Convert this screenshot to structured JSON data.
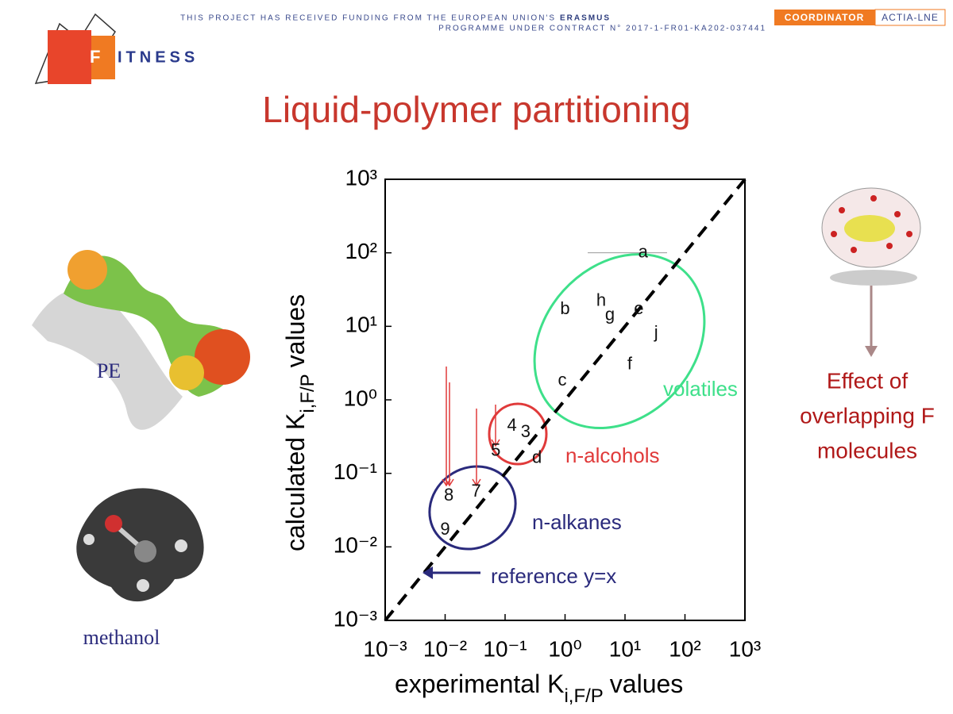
{
  "header": {
    "funding": {
      "line1": "THIS PROJECT HAS RECEIVED FUNDING FROM THE EUROPEAN UNION'S",
      "bold": "ERASMUS",
      "line2": "PROGRAMME UNDER CONTRACT N° 2017-1-FR01-KA202-037441"
    },
    "coordinator": "COORDINATOR",
    "partner": "ACTIA-LNE",
    "logo": {
      "letter": "F",
      "rest": "ITNESS"
    }
  },
  "slide_title": "Liquid-polymer partitioning",
  "left_labels": {
    "polymer": "PE",
    "molecule": "methanol"
  },
  "right_label": [
    "Effect of",
    "overlapping F",
    "molecules"
  ],
  "chart_data": {
    "type": "scatter",
    "xscale": "log",
    "yscale": "log",
    "x_label": {
      "main": "experimental K",
      "sub": "i,F/P",
      "tail": "values"
    },
    "y_label": {
      "main": "calculated K",
      "sub": "i,F/P",
      "tail": "values"
    },
    "labels": [
      "a",
      "b",
      "h",
      "g",
      "e",
      "j",
      "f",
      "c",
      "4",
      "3",
      "5",
      "d",
      "8",
      "7",
      "9"
    ],
    "x": [
      20,
      1,
      4,
      5.6,
      17,
      33,
      12,
      0.9,
      0.13,
      0.22,
      0.07,
      0.34,
      0.0115,
      0.033,
      0.01
    ],
    "values": [
      100,
      17,
      22,
      14,
      17,
      8,
      3,
      1.8,
      0.44,
      0.36,
      0.2,
      0.16,
      0.049,
      0.056,
      0.017
    ],
    "color": "#111111",
    "xlim": [
      0.001,
      1000
    ],
    "ylim": [
      0.001,
      1000
    ],
    "xticks": [
      {
        "value": 0.001,
        "label": "10⁻³"
      },
      {
        "value": 0.01,
        "label": "10⁻²"
      },
      {
        "value": 0.1,
        "label": "10⁻¹"
      },
      {
        "value": 1,
        "label": "10⁰"
      },
      {
        "value": 10,
        "label": "10¹"
      },
      {
        "value": 100,
        "label": "10²"
      },
      {
        "value": 1000,
        "label": "10³"
      }
    ],
    "yticks": [
      {
        "value": 0.001,
        "label": "10⁻³"
      },
      {
        "value": 0.01,
        "label": "10⁻²"
      },
      {
        "value": 0.1,
        "label": "10⁻¹"
      },
      {
        "value": 1,
        "label": "10⁰"
      },
      {
        "value": 10,
        "label": "10¹"
      },
      {
        "value": 100,
        "label": "10²"
      },
      {
        "value": 1000,
        "label": "10³"
      }
    ],
    "annotations": {
      "volatiles": "volatiles",
      "alcohols": "n-alcohols",
      "alkanes": "n-alkanes",
      "reference": "reference y=x"
    }
  }
}
